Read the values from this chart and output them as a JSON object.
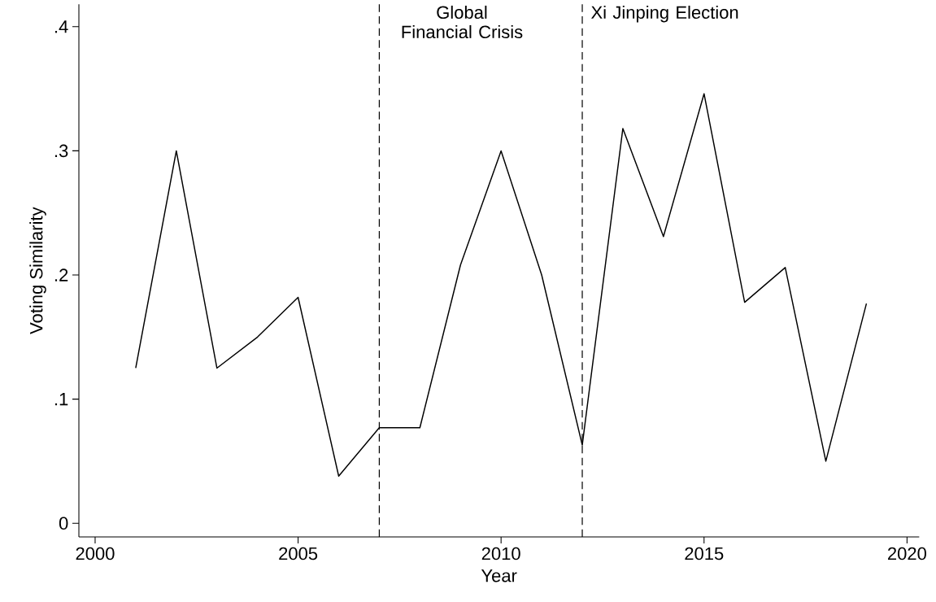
{
  "chart_data": {
    "type": "line",
    "xlabel": "Year",
    "ylabel": "Voting Similarity",
    "x": [
      2001,
      2002,
      2003,
      2004,
      2005,
      2006,
      2007,
      2008,
      2009,
      2010,
      2011,
      2012,
      2013,
      2014,
      2015,
      2016,
      2017,
      2018,
      2019
    ],
    "series": [
      {
        "color": "#000000",
        "values": [
          0.125,
          0.3,
          0.125,
          0.15,
          0.182,
          0.038,
          0.077,
          0.077,
          0.208,
          0.3,
          0.2,
          0.063,
          0.318,
          0.231,
          0.346,
          0.178,
          0.206,
          0.05,
          0.177
        ]
      }
    ],
    "xlim": [
      1999.6,
      2020.3
    ],
    "ylim": [
      -0.011,
      0.418
    ],
    "xticks": [
      2000,
      2005,
      2010,
      2015,
      2020
    ],
    "yticks": [
      {
        "value": 0,
        "label": "0"
      },
      {
        "value": 0.1,
        "label": ".1"
      },
      {
        "value": 0.2,
        "label": ".2"
      },
      {
        "value": 0.3,
        "label": ".3"
      },
      {
        "value": 0.4,
        "label": ".4"
      }
    ],
    "ref_lines": [
      {
        "axis": "x",
        "value": 2007,
        "label": "Global Financial Crisis",
        "line_style": "dashed"
      },
      {
        "axis": "x",
        "value": 2012,
        "label": "Xi Jinping Election",
        "line_style": "dashed"
      }
    ],
    "grid": false,
    "marker": "none",
    "line_style": "solid"
  }
}
